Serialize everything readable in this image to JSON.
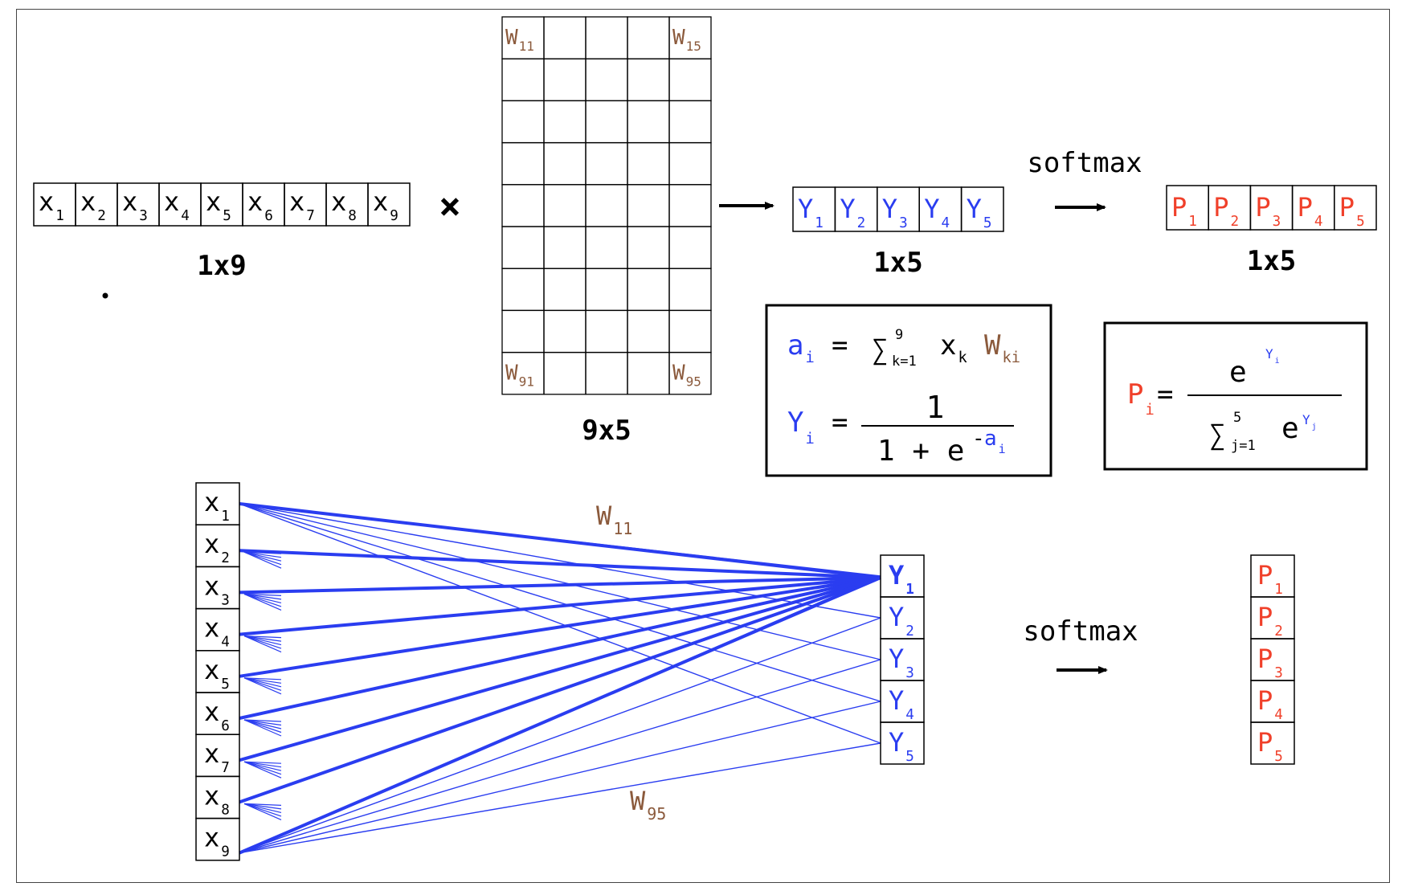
{
  "colors": {
    "x": "#000000",
    "y": "#2a3df0",
    "p": "#f0402a",
    "w": "#8b5a3c",
    "line": "#2a3df0",
    "box": "#000000"
  },
  "matrix_view": {
    "x_vector": {
      "base": "x",
      "subs": [
        "1",
        "2",
        "3",
        "4",
        "5",
        "6",
        "7",
        "8",
        "9"
      ],
      "dim": "1x9"
    },
    "times_symbol": "×",
    "weight_matrix": {
      "rows": 9,
      "cols": 5,
      "dim": "9x5",
      "corners": [
        {
          "base": "W",
          "sub": "11",
          "pos": "top-left"
        },
        {
          "base": "W",
          "sub": "15",
          "pos": "top-right"
        },
        {
          "base": "W",
          "sub": "91",
          "pos": "bottom-left"
        },
        {
          "base": "W",
          "sub": "95",
          "pos": "bottom-right"
        }
      ]
    },
    "y_vector": {
      "base": "Y",
      "subs": [
        "1",
        "2",
        "3",
        "4",
        "5"
      ],
      "dim": "1x5"
    },
    "softmax_label": "softmax",
    "p_vector": {
      "base": "P",
      "subs": [
        "1",
        "2",
        "3",
        "4",
        "5"
      ],
      "dim": "1x5"
    }
  },
  "formula_box_1": {
    "line1": {
      "lhs_base": "a",
      "lhs_sub": "i",
      "eq": "=",
      "sigma": "∑",
      "sigma_top": "9",
      "sigma_bottom": "k=1",
      "x_base": "x",
      "x_sub": "k",
      "w_base": "W",
      "w_sub": "ki"
    },
    "line2": {
      "lhs_base": "Y",
      "lhs_sub": "i",
      "eq": "=",
      "numerator": "1",
      "denom_prefix": "1 + e",
      "exp_sign": "-",
      "exp_base": "a",
      "exp_sub": "i"
    }
  },
  "formula_box_2": {
    "lhs_base": "P",
    "lhs_sub": "i",
    "eq": "=",
    "num_base": "e",
    "num_exp_base": "Y",
    "num_exp_sub": "i",
    "sigma": "∑",
    "sigma_top": "5",
    "sigma_bottom": "j=1",
    "den_base": "e",
    "den_exp_base": "Y",
    "den_exp_sub": "j"
  },
  "network_view": {
    "inputs": {
      "base": "x",
      "subs": [
        "1",
        "2",
        "3",
        "4",
        "5",
        "6",
        "7",
        "8",
        "9"
      ]
    },
    "outputs": {
      "base": "Y",
      "subs": [
        "1",
        "2",
        "3",
        "4",
        "5"
      ]
    },
    "weight_top": {
      "base": "W",
      "sub": "11"
    },
    "weight_bottom": {
      "base": "W",
      "sub": "95"
    },
    "softmax_label": "softmax",
    "probs": {
      "base": "P",
      "subs": [
        "1",
        "2",
        "3",
        "4",
        "5"
      ]
    }
  }
}
